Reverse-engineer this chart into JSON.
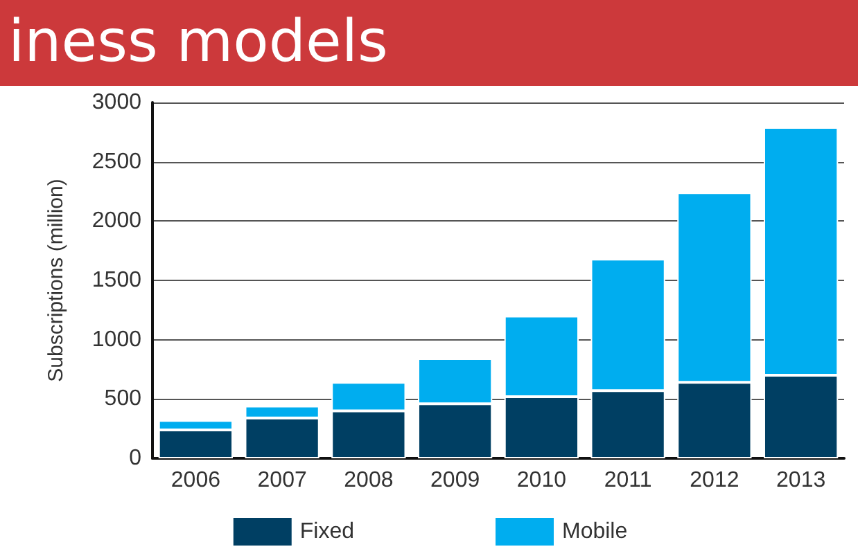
{
  "chart_data": {
    "type": "bar",
    "title": "iness models",
    "ylabel": "Subscriptions (million)",
    "categories": [
      "2006",
      "2007",
      "2008",
      "2009",
      "2010",
      "2011",
      "2012",
      "2013"
    ],
    "series": [
      {
        "name": "Fixed",
        "color": "#003f63",
        "values": [
          240,
          340,
          400,
          460,
          520,
          570,
          640,
          700
        ]
      },
      {
        "name": "Mobile",
        "color": "#00adef",
        "values": [
          80,
          100,
          240,
          380,
          680,
          1110,
          1600,
          2090
        ]
      }
    ],
    "stacked": true,
    "ylim": [
      0,
      3000
    ],
    "yticks": [
      0,
      500,
      1000,
      1500,
      2000,
      2500,
      3000
    ],
    "grid": "y",
    "legend": "bottom"
  }
}
